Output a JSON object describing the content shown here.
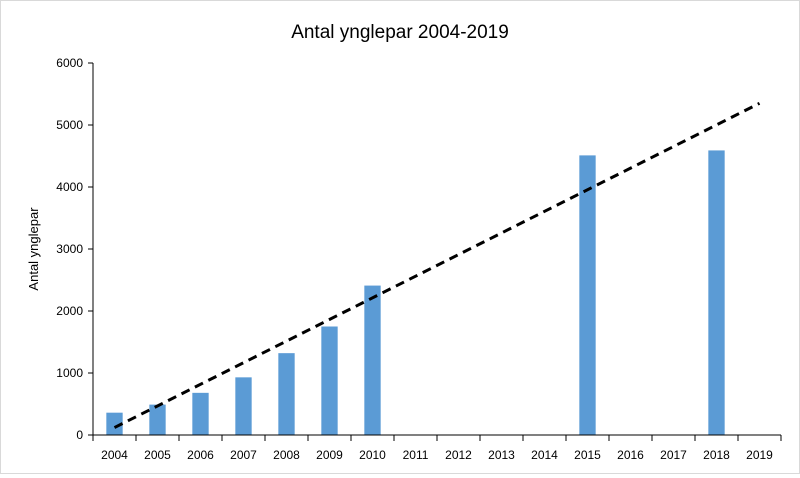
{
  "chart_data": {
    "type": "bar",
    "title": "Antal ynglepar 2004-2019",
    "xlabel": "",
    "ylabel": "Antal ynglepar",
    "ylim": [
      0,
      6000
    ],
    "yticks": [
      0,
      1000,
      2000,
      3000,
      4000,
      5000,
      6000
    ],
    "grid": false,
    "legend": "none",
    "categories": [
      "2004",
      "2005",
      "2006",
      "2007",
      "2008",
      "2009",
      "2010",
      "2011",
      "2012",
      "2013",
      "2014",
      "2015",
      "2016",
      "2017",
      "2018",
      "2019"
    ],
    "series": [
      {
        "name": "Antal ynglepar",
        "values": [
          360,
          490,
          680,
          930,
          1320,
          1750,
          2410,
          null,
          null,
          null,
          null,
          4510,
          null,
          null,
          4590,
          null
        ],
        "color": "#5b9bd5"
      }
    ],
    "trendline": {
      "style": "dashed",
      "color": "#000000",
      "start": {
        "category": "2004",
        "value": 120
      },
      "end": {
        "category": "2019",
        "value": 5350
      }
    }
  }
}
